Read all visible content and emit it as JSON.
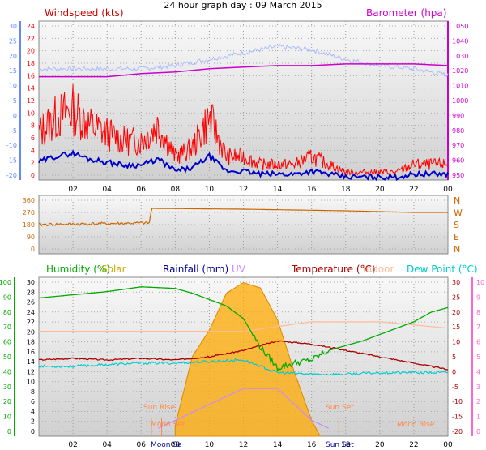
{
  "title": "24 hour graph day : 09 March 2015",
  "colors": {
    "wind": "#ff0000",
    "gust_red": "#ff0000",
    "wind_avg": "#0000cc",
    "baro": "#cc00cc",
    "temp_left_axis": "#6688ff",
    "direction": "#cc6600",
    "humidity": "#00aa00",
    "solar": "#ffaa00",
    "rain": "#000099",
    "uv": "#cc88ff",
    "temperature": "#aa0000",
    "indoor": "#ffbb99",
    "dewpoint": "#00cccc",
    "right_pink": "#ff66cc"
  },
  "x_ticks": [
    "02",
    "04",
    "06",
    "08",
    "10",
    "12",
    "14",
    "16",
    "18",
    "20",
    "22",
    "00"
  ],
  "chart_data": [
    {
      "type": "line",
      "legend_left": "Windspeed (kts)",
      "legend_right": "Barometer (hpa)",
      "y_left_ticks": [
        "24",
        "22",
        "20",
        "18",
        "16",
        "14",
        "12",
        "10",
        "8",
        "6",
        "4",
        "2",
        "0"
      ],
      "y_far_left_ticks": [
        "30",
        "25",
        "20",
        "15",
        "10",
        "5",
        "0",
        "-5",
        "-10",
        "-15",
        "-20"
      ],
      "y_right_ticks": [
        "1050",
        "1040",
        "1030",
        "1020",
        "1010",
        "1000",
        "990",
        "980",
        "970",
        "960",
        "950"
      ],
      "ylim_left": [
        0,
        24
      ],
      "ylim_right": [
        950,
        1050
      ],
      "series": [
        {
          "name": "Windspeed (kts)",
          "x": [
            0,
            1,
            2,
            3,
            4,
            5,
            6,
            7,
            8,
            9,
            10,
            11,
            12,
            13,
            14,
            15,
            16,
            17,
            18,
            19,
            20,
            21,
            22,
            23,
            24
          ],
          "values": [
            6,
            8,
            9,
            7,
            6,
            5,
            5,
            7,
            3,
            4,
            8,
            3,
            3,
            2,
            2,
            2,
            3,
            2,
            1,
            1,
            1,
            1,
            2,
            2,
            2
          ]
        },
        {
          "name": "Barometer (hpa)",
          "x": [
            0,
            2,
            4,
            6,
            8,
            10,
            12,
            14,
            16,
            18,
            20,
            22,
            24
          ],
          "values": [
            1015,
            1015,
            1015,
            1017,
            1018,
            1020,
            1021,
            1022,
            1022,
            1023,
            1023,
            1023,
            1022
          ]
        }
      ]
    },
    {
      "type": "line",
      "legend_right": [
        "N",
        "W",
        "S",
        "E",
        "N"
      ],
      "y_left_ticks": [
        "360",
        "270",
        "180",
        "90",
        "0"
      ],
      "ylim": [
        0,
        360
      ],
      "series": [
        {
          "name": "direction",
          "x": [
            0,
            6.5,
            6.6,
            12,
            18,
            22,
            24
          ],
          "values": [
            180,
            190,
            280,
            275,
            265,
            255,
            255
          ]
        }
      ]
    },
    {
      "type": "line",
      "legends": [
        "Humidity (%)",
        "Solar",
        "Rainfall (mm)",
        "UV",
        "Temperature (°C)",
        "Indoor",
        "Dew Point (°C)"
      ],
      "y_left_ticks": [
        "100",
        "90",
        "80",
        "70",
        "60",
        "50",
        "40",
        "30",
        "20",
        "10",
        "0"
      ],
      "y_left2_ticks": [
        "30",
        "28",
        "26",
        "24",
        "22",
        "20",
        "18",
        "16",
        "14",
        "12",
        "10",
        "8",
        "6",
        "4",
        "2",
        "0"
      ],
      "y_right_ticks": [
        "30",
        "25",
        "20",
        "15",
        "10",
        "5",
        "0",
        "-5",
        "-10",
        "-15",
        "-20"
      ],
      "y_far_right_ticks": [
        "10",
        "9",
        "8",
        "7",
        "6",
        "5",
        "4",
        "3",
        "2",
        "1",
        "0"
      ],
      "ylim_humidity": [
        0,
        100
      ],
      "ylim_temperature": [
        -20,
        30
      ],
      "series": [
        {
          "name": "Humidity (%)",
          "x": [
            0,
            2,
            4,
            6,
            8,
            9,
            10,
            11,
            12,
            13,
            14,
            15,
            16,
            17,
            18,
            19,
            20,
            21,
            22,
            23,
            24
          ],
          "values": [
            87,
            89,
            91,
            94,
            93,
            90,
            86,
            82,
            74,
            56,
            43,
            46,
            48,
            54,
            57,
            60,
            64,
            68,
            72,
            78,
            81
          ]
        },
        {
          "name": "Temperature (°C)",
          "x": [
            0,
            2,
            4,
            6,
            8,
            10,
            12,
            14,
            16,
            18,
            20,
            22,
            24
          ],
          "values": [
            4,
            4.5,
            4,
            4.5,
            4,
            5,
            7,
            10,
            9,
            7,
            5,
            3,
            1
          ]
        },
        {
          "name": "Dew Point (°C)",
          "x": [
            0,
            2,
            4,
            6,
            8,
            10,
            12,
            13,
            14,
            16,
            18,
            20,
            22,
            24
          ],
          "values": [
            2,
            2,
            2.5,
            3,
            3,
            3.5,
            4,
            2,
            0,
            -0.5,
            -0.5,
            0,
            0,
            0
          ]
        },
        {
          "name": "Indoor",
          "x": [
            0,
            4,
            8,
            12,
            16,
            18,
            20,
            24
          ],
          "values": [
            13,
            13,
            13,
            13,
            16,
            16,
            16,
            14
          ]
        },
        {
          "name": "Solar",
          "x": [
            8,
            9,
            10,
            11,
            12,
            13,
            14,
            15,
            16,
            16.5
          ],
          "values": [
            2,
            15,
            20,
            27,
            29,
            28,
            22,
            12,
            3,
            0
          ]
        },
        {
          "name": "UV",
          "x": [
            7,
            8,
            10,
            12,
            13,
            14,
            15,
            16,
            17
          ],
          "values": [
            0.5,
            1,
            2,
            3,
            3,
            3,
            2,
            1,
            0.5
          ]
        }
      ],
      "annotations": [
        "Sun Rise",
        "Sun Set",
        "Moon Set",
        "Moon Rise",
        "Moon Se",
        "Sun Set"
      ]
    }
  ]
}
